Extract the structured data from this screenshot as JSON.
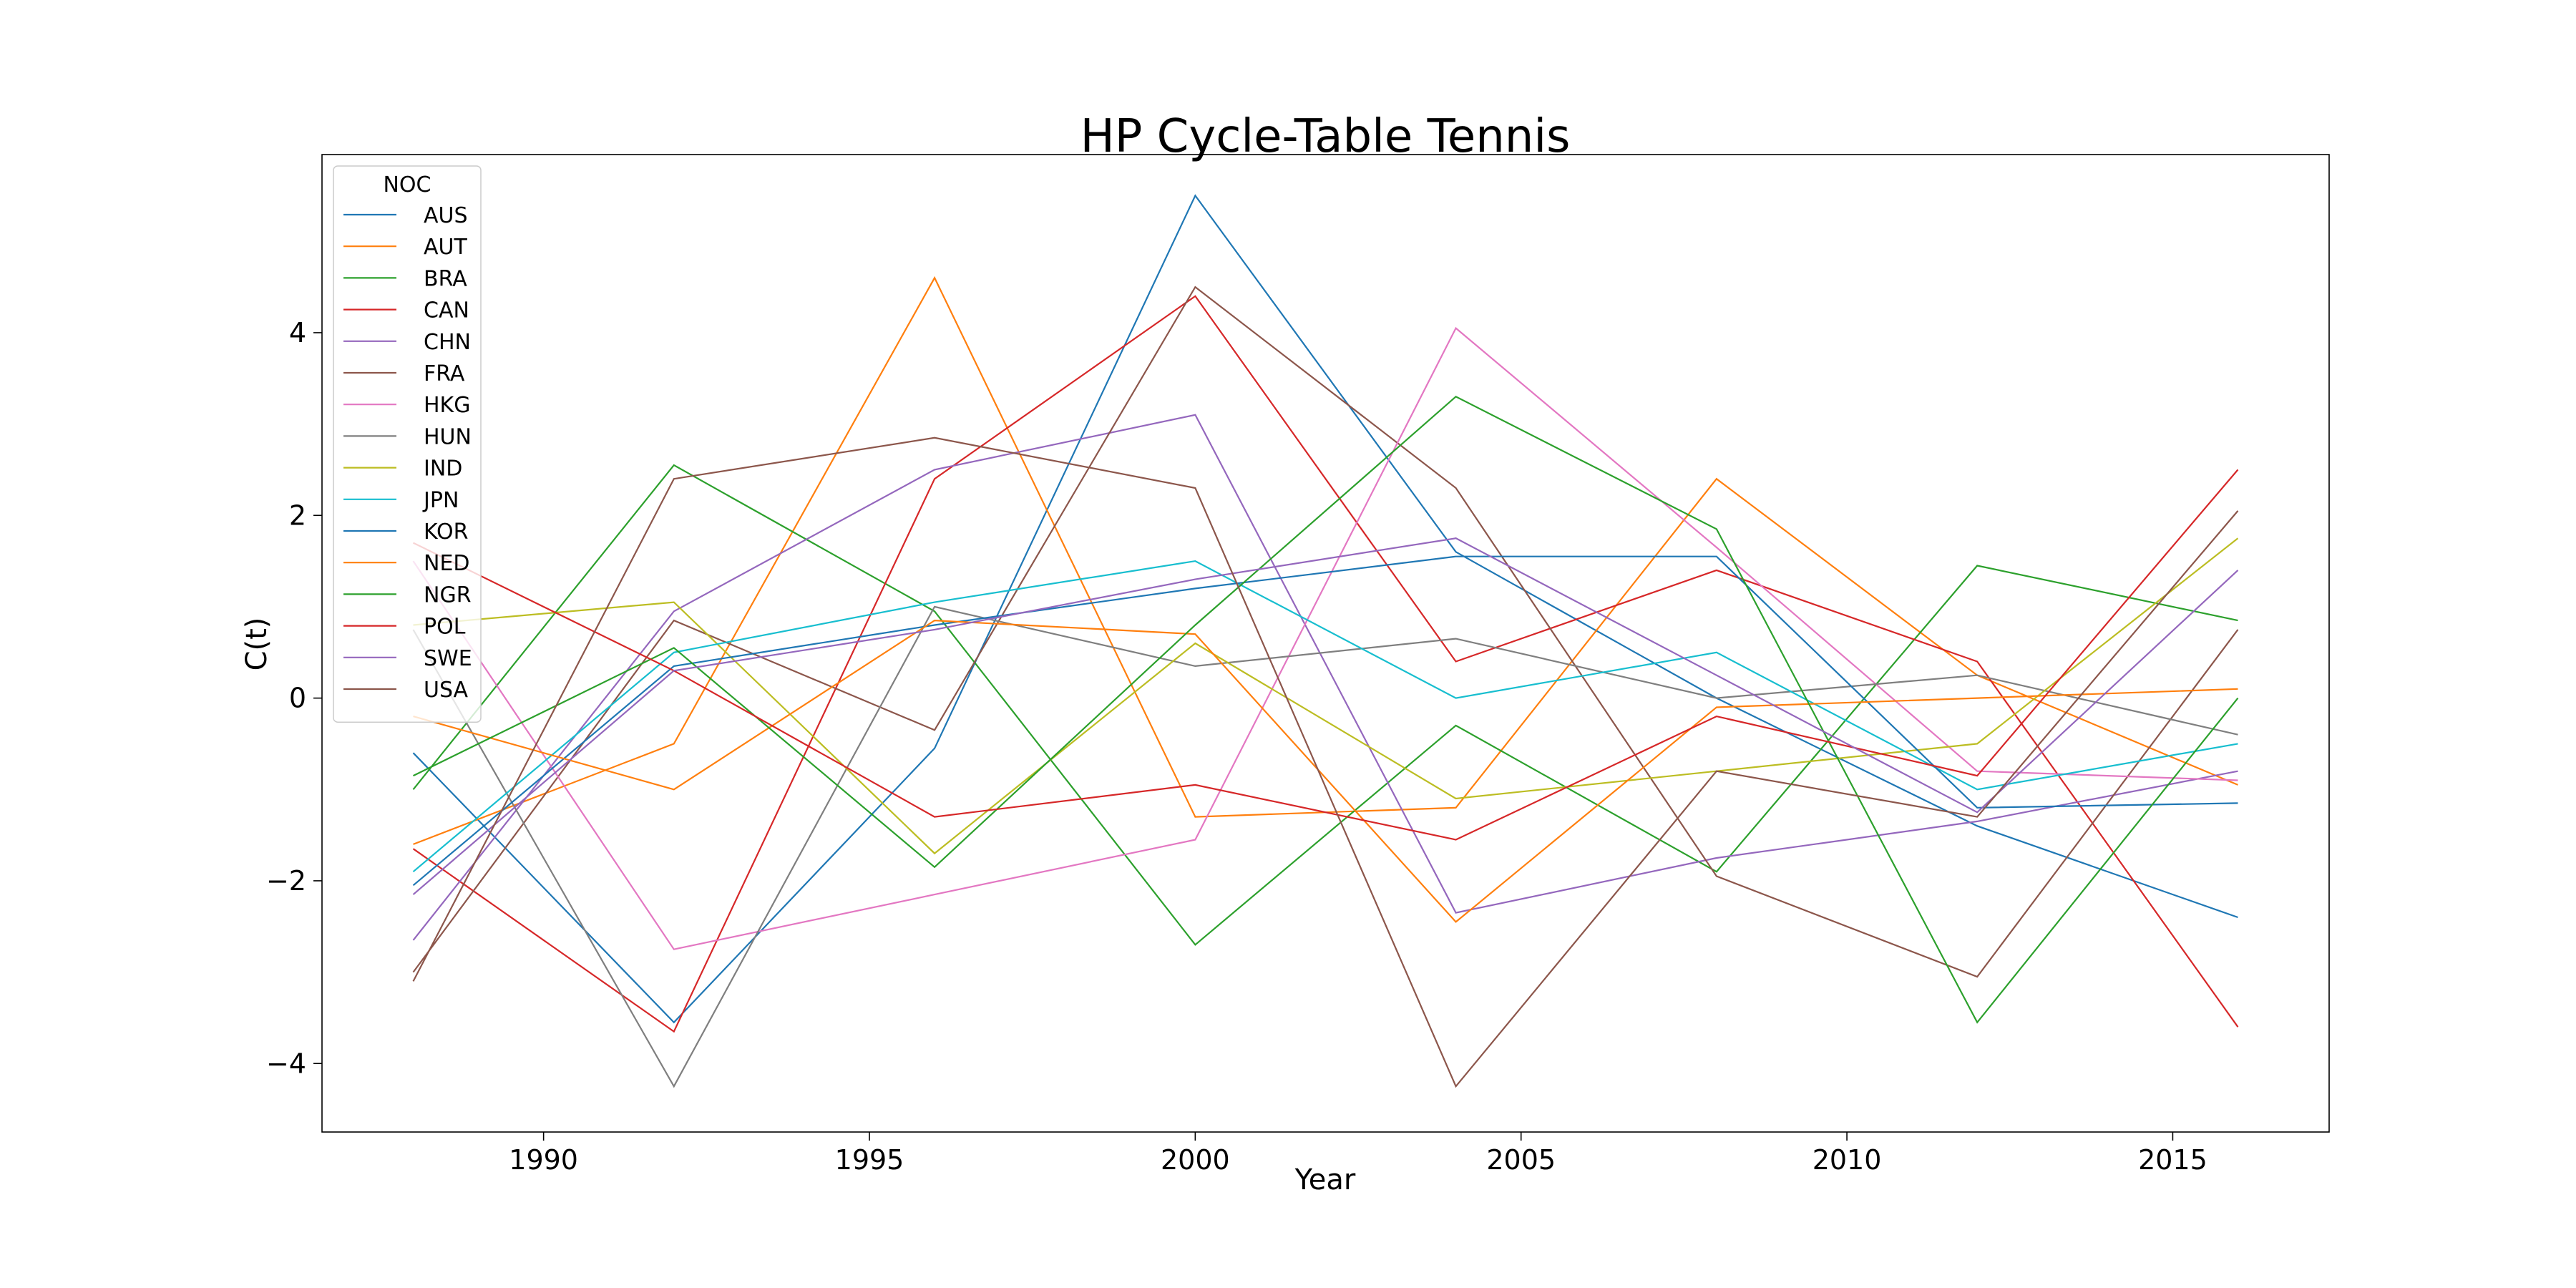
{
  "chart_data": {
    "type": "line",
    "title": "HP Cycle-Table Tennis",
    "xlabel": "Year",
    "ylabel": "C(t)",
    "x": [
      1988,
      1992,
      1996,
      2000,
      2004,
      2008,
      2012,
      2016
    ],
    "xlim": [
      1986.6,
      2017.4
    ],
    "ylim": [
      -4.75,
      5.95
    ],
    "xticks": [
      1990,
      1995,
      2000,
      2005,
      2010,
      2015
    ],
    "yticks": [
      -4,
      -2,
      0,
      2,
      4
    ],
    "grid": false,
    "legend": {
      "title": "NOC",
      "placement": "top-left"
    },
    "series": [
      {
        "name": "AUS",
        "color": "#1f77b4",
        "values": [
          -0.6,
          -3.55,
          -0.55,
          5.5,
          1.6,
          0.0,
          -1.4,
          -2.4
        ]
      },
      {
        "name": "AUT",
        "color": "#ff7f0e",
        "values": [
          -1.6,
          -0.5,
          4.6,
          -1.3,
          -1.2,
          2.4,
          0.25,
          -0.95
        ]
      },
      {
        "name": "BRA",
        "color": "#2ca02c",
        "values": [
          -1.0,
          2.55,
          0.95,
          -2.7,
          -0.3,
          -1.9,
          1.45,
          0.85
        ]
      },
      {
        "name": "CAN",
        "color": "#d62728",
        "values": [
          -1.65,
          -3.65,
          2.4,
          4.4,
          0.4,
          1.4,
          0.4,
          -3.6
        ]
      },
      {
        "name": "CHN",
        "color": "#9467bd",
        "values": [
          -2.65,
          0.95,
          2.5,
          3.1,
          -2.35,
          -1.75,
          -1.35,
          -0.8
        ]
      },
      {
        "name": "FRA",
        "color": "#8c564b",
        "values": [
          -3.0,
          0.85,
          -0.35,
          4.5,
          2.3,
          -1.95,
          -3.05,
          0.75
        ]
      },
      {
        "name": "HKG",
        "color": "#e377c2",
        "values": [
          1.5,
          -2.75,
          -2.15,
          -1.55,
          4.05,
          1.65,
          -0.8,
          -0.9
        ]
      },
      {
        "name": "HUN",
        "color": "#7f7f7f",
        "values": [
          0.75,
          -4.25,
          1.0,
          0.35,
          0.65,
          0.0,
          0.25,
          -0.4
        ]
      },
      {
        "name": "IND",
        "color": "#bcbd22",
        "values": [
          0.8,
          1.05,
          -1.7,
          0.6,
          -1.1,
          -0.8,
          -0.5,
          1.75
        ]
      },
      {
        "name": "JPN",
        "color": "#17becf",
        "values": [
          -1.9,
          0.5,
          1.05,
          1.5,
          0.0,
          0.5,
          -1.0,
          -0.5
        ]
      },
      {
        "name": "KOR",
        "color": "#1f77b4",
        "values": [
          -2.05,
          0.35,
          0.8,
          1.2,
          1.55,
          1.55,
          -1.2,
          -1.15
        ]
      },
      {
        "name": "NED",
        "color": "#ff7f0e",
        "values": [
          -0.2,
          -1.0,
          0.85,
          0.7,
          -2.45,
          -0.1,
          0.0,
          0.1
        ]
      },
      {
        "name": "NGR",
        "color": "#2ca02c",
        "values": [
          -0.85,
          0.55,
          -1.85,
          0.8,
          3.3,
          1.85,
          -3.55,
          0.0
        ]
      },
      {
        "name": "POL",
        "color": "#d62728",
        "values": [
          1.7,
          0.3,
          -1.3,
          -0.95,
          -1.55,
          -0.2,
          -0.85,
          2.5
        ]
      },
      {
        "name": "SWE",
        "color": "#9467bd",
        "values": [
          -2.15,
          0.3,
          0.75,
          1.3,
          1.75,
          0.25,
          -1.25,
          1.4
        ]
      },
      {
        "name": "USA",
        "color": "#8c564b",
        "values": [
          -3.1,
          2.4,
          2.85,
          2.3,
          -4.25,
          -0.8,
          -1.3,
          2.05
        ]
      }
    ]
  }
}
